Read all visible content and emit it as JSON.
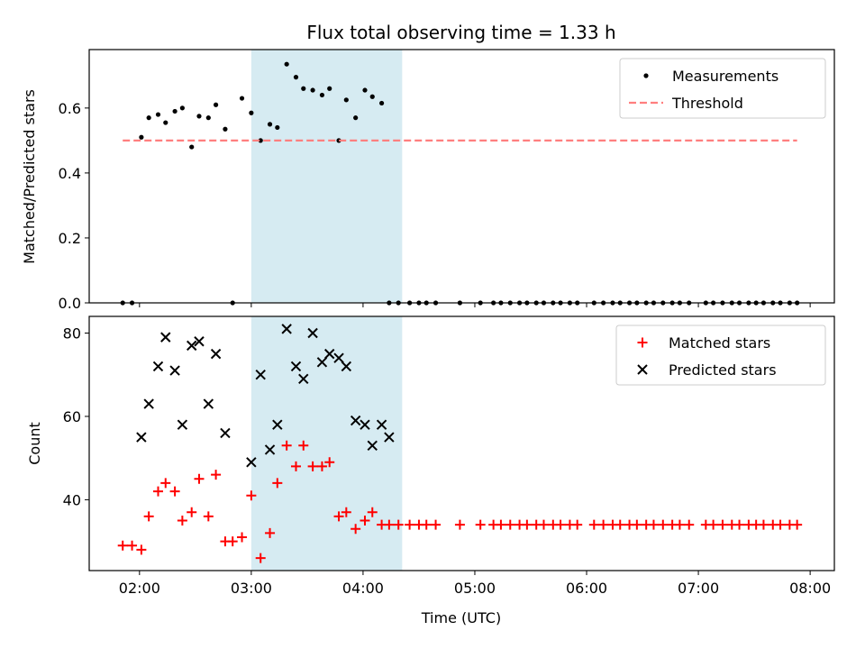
{
  "title": "Flux total observing time = 1.33 h",
  "colors": {
    "highlight": "#add8e6",
    "measurement": "#000000",
    "threshold": "#ff7f7f",
    "matched": "#ff0000",
    "predicted": "#000000"
  },
  "chart_data": [
    {
      "type": "scatter",
      "xlabel": "",
      "ylabel": "Matched/Predicted stars",
      "xlim": [
        "01:33",
        "08:13"
      ],
      "ylim": [
        0,
        0.78
      ],
      "yticks": [
        0.0,
        0.2,
        0.4,
        0.6
      ],
      "ytick_labels": [
        "0.0",
        "0.2",
        "0.4",
        "0.6"
      ],
      "xticks": [
        "02:00",
        "03:00",
        "04:00",
        "05:00",
        "06:00",
        "07:00",
        "08:00"
      ],
      "xtick_labels_shown": false,
      "highlight_span": [
        "03:00",
        "04:21"
      ],
      "legend": {
        "position": "top-right",
        "entries": [
          "Measurements",
          "Threshold"
        ]
      },
      "series": [
        {
          "name": "Measurements",
          "marker": "dot",
          "x": [
            "01:51",
            "01:56",
            "02:01",
            "02:05",
            "02:10",
            "02:14",
            "02:19",
            "02:23",
            "02:28",
            "02:32",
            "02:37",
            "02:41",
            "02:46",
            "02:50",
            "02:55",
            "03:00",
            "03:05",
            "03:10",
            "03:14",
            "03:19",
            "03:24",
            "03:28",
            "03:33",
            "03:38",
            "03:42",
            "03:47",
            "03:51",
            "03:56",
            "04:01",
            "04:05",
            "04:10",
            "04:14",
            "04:19",
            "04:25",
            "04:30",
            "04:34",
            "04:39",
            "04:52",
            "05:03",
            "05:10",
            "05:14",
            "05:19",
            "05:24",
            "05:28",
            "05:33",
            "05:37",
            "05:42",
            "05:46",
            "05:51",
            "05:55",
            "06:04",
            "06:09",
            "06:14",
            "06:18",
            "06:23",
            "06:27",
            "06:32",
            "06:36",
            "06:41",
            "06:46",
            "06:50",
            "06:55",
            "07:04",
            "07:08",
            "07:13",
            "07:18",
            "07:22",
            "07:27",
            "07:31",
            "07:35",
            "07:40",
            "07:44",
            "07:49",
            "07:53"
          ],
          "y": [
            0,
            0,
            0.51,
            0.57,
            0.58,
            0.555,
            0.59,
            0.6,
            0.48,
            0.575,
            0.57,
            0.61,
            0.535,
            0,
            0.63,
            0.585,
            0.5,
            0.55,
            0.54,
            0.735,
            0.695,
            0.66,
            0.655,
            0.64,
            0.66,
            0.5,
            0.625,
            0.57,
            0.655,
            0.635,
            0.615,
            0,
            0,
            0,
            0,
            0,
            0,
            0,
            0,
            0,
            0,
            0,
            0,
            0,
            0,
            0,
            0,
            0,
            0,
            0,
            0,
            0,
            0,
            0,
            0,
            0,
            0,
            0,
            0,
            0,
            0,
            0,
            0,
            0,
            0,
            0,
            0,
            0,
            0,
            0,
            0,
            0,
            0,
            0
          ]
        },
        {
          "name": "Threshold",
          "marker": "dashed-line",
          "x": [
            "01:51",
            "07:53"
          ],
          "y": [
            0.5,
            0.5
          ]
        }
      ]
    },
    {
      "type": "scatter",
      "xlabel": "Time (UTC)",
      "ylabel": "Count",
      "xlim": [
        "01:33",
        "08:13"
      ],
      "ylim": [
        23,
        84
      ],
      "yticks": [
        40,
        60,
        80
      ],
      "ytick_labels": [
        "40",
        "60",
        "80"
      ],
      "xticks": [
        "02:00",
        "03:00",
        "04:00",
        "05:00",
        "06:00",
        "07:00",
        "08:00"
      ],
      "xtick_labels": [
        "02:00",
        "03:00",
        "04:00",
        "05:00",
        "06:00",
        "07:00",
        "08:00"
      ],
      "highlight_span": [
        "03:00",
        "04:21"
      ],
      "legend": {
        "position": "top-right",
        "entries": [
          "Matched stars",
          "Predicted stars"
        ]
      },
      "series": [
        {
          "name": "Matched stars",
          "marker": "plus",
          "x": [
            "01:51",
            "01:56",
            "02:01",
            "02:05",
            "02:10",
            "02:14",
            "02:19",
            "02:23",
            "02:28",
            "02:32",
            "02:37",
            "02:41",
            "02:46",
            "02:50",
            "02:55",
            "03:00",
            "03:05",
            "03:10",
            "03:14",
            "03:19",
            "03:24",
            "03:28",
            "03:33",
            "03:38",
            "03:42",
            "03:47",
            "03:51",
            "03:56",
            "04:01",
            "04:05",
            "04:10",
            "04:14",
            "04:19",
            "04:25",
            "04:30",
            "04:34",
            "04:39",
            "04:52",
            "05:03",
            "05:10",
            "05:14",
            "05:19",
            "05:24",
            "05:28",
            "05:33",
            "05:37",
            "05:42",
            "05:46",
            "05:51",
            "05:55",
            "06:04",
            "06:09",
            "06:14",
            "06:18",
            "06:23",
            "06:27",
            "06:32",
            "06:36",
            "06:41",
            "06:46",
            "06:50",
            "06:55",
            "07:04",
            "07:08",
            "07:13",
            "07:18",
            "07:22",
            "07:27",
            "07:31",
            "07:35",
            "07:40",
            "07:44",
            "07:49",
            "07:53"
          ],
          "y": [
            29,
            29,
            28,
            36,
            42,
            44,
            42,
            35,
            37,
            45,
            36,
            46,
            30,
            30,
            31,
            41,
            26,
            32,
            44,
            53,
            48,
            53,
            48,
            48,
            49,
            36,
            37,
            33,
            35,
            37,
            34,
            34,
            34,
            34,
            34,
            34,
            34,
            34,
            34,
            34,
            34,
            34,
            34,
            34,
            34,
            34,
            34,
            34,
            34,
            34,
            34,
            34,
            34,
            34,
            34,
            34,
            34,
            34,
            34,
            34,
            34,
            34,
            34,
            34,
            34,
            34,
            34,
            34,
            34,
            34,
            34,
            34,
            34,
            34
          ]
        },
        {
          "name": "Predicted stars",
          "marker": "x",
          "x": [
            "02:01",
            "02:05",
            "02:10",
            "02:14",
            "02:19",
            "02:23",
            "02:28",
            "02:32",
            "02:37",
            "02:41",
            "02:46",
            "03:00",
            "03:05",
            "03:10",
            "03:14",
            "03:19",
            "03:24",
            "03:28",
            "03:33",
            "03:38",
            "03:42",
            "03:47",
            "03:51",
            "03:56",
            "04:01",
            "04:05",
            "04:10",
            "04:14"
          ],
          "y": [
            55,
            63,
            72,
            79,
            71,
            58,
            77,
            78,
            63,
            75,
            56,
            49,
            70,
            52,
            58,
            81,
            72,
            69,
            80,
            73,
            75,
            74,
            72,
            59,
            58,
            53,
            58,
            55
          ]
        }
      ]
    }
  ]
}
